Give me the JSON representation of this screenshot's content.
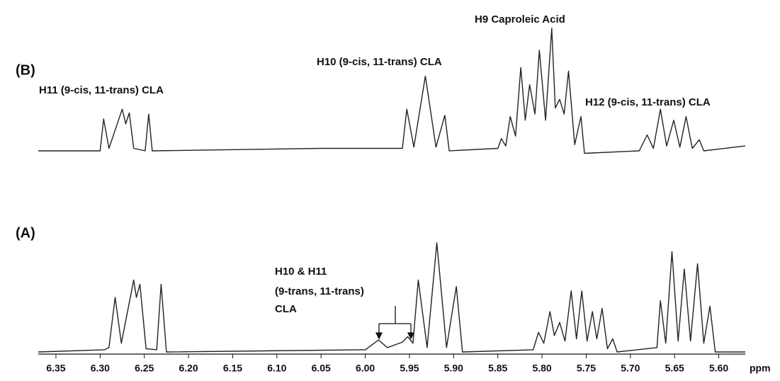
{
  "chart_data": [
    {
      "type": "line",
      "panel_label": "(B)",
      "color": "#222",
      "xlim": [
        6.37,
        5.57
      ],
      "ylim": [
        0,
        100
      ],
      "annotations": [
        "H11 (9-cis, 11-trans) CLA",
        "H10 (9-cis, 11-trans) CLA",
        "H9 Caproleic Acid",
        "H12 (9-cis, 11-trans) CLA"
      ],
      "x": [
        6.37,
        6.3,
        6.296,
        6.29,
        6.275,
        6.271,
        6.267,
        6.262,
        6.249,
        6.245,
        6.241,
        6.05,
        5.958,
        5.953,
        5.945,
        5.932,
        5.92,
        5.91,
        5.905,
        5.85,
        5.846,
        5.841,
        5.836,
        5.83,
        5.824,
        5.819,
        5.814,
        5.808,
        5.803,
        5.796,
        5.789,
        5.785,
        5.78,
        5.775,
        5.77,
        5.763,
        5.756,
        5.752,
        5.69,
        5.681,
        5.674,
        5.666,
        5.659,
        5.651,
        5.644,
        5.637,
        5.63,
        5.622,
        5.617,
        5.57
      ],
      "values": [
        0,
        0,
        26,
        2,
        34,
        22,
        31,
        2,
        0,
        30,
        0,
        2,
        2,
        34,
        3,
        61,
        3,
        29,
        0,
        2,
        10,
        4,
        28,
        12,
        68,
        25,
        54,
        30,
        82,
        25,
        100,
        35,
        42,
        30,
        65,
        5,
        28,
        -2,
        0,
        13,
        2,
        34,
        4,
        25,
        3,
        28,
        2,
        9,
        0,
        4
      ]
    },
    {
      "type": "line",
      "panel_label": "(A)",
      "color": "#222",
      "xlim": [
        6.37,
        5.57
      ],
      "ylim": [
        0,
        100
      ],
      "xlabel": "ppm",
      "xticks": [
        6.35,
        {
          "value": 6.3,
          "label": "6.30"
        },
        6.25,
        {
          "value": 6.2,
          "label": "6.20"
        },
        6.15,
        {
          "value": 6.1,
          "label": "6.10"
        },
        6.05,
        {
          "value": 6.0,
          "label": "6.00"
        },
        5.95,
        {
          "value": 5.9,
          "label": "5.90"
        },
        5.85,
        {
          "value": 5.8,
          "label": "5.80"
        },
        5.75,
        {
          "value": 5.7,
          "label": "5.70"
        },
        5.65,
        {
          "value": 5.6,
          "label": "5.60"
        }
      ],
      "annotations": [
        "H10 & H11",
        "(9-trans, 11-trans)",
        "CLA"
      ],
      "x": [
        6.37,
        6.295,
        6.29,
        6.283,
        6.276,
        6.262,
        6.259,
        6.255,
        6.248,
        6.236,
        6.231,
        6.225,
        6.0,
        5.985,
        5.975,
        5.958,
        5.952,
        5.946,
        5.94,
        5.93,
        5.919,
        5.908,
        5.897,
        5.89,
        5.81,
        5.804,
        5.798,
        5.791,
        5.786,
        5.78,
        5.774,
        5.767,
        5.761,
        5.755,
        5.749,
        5.743,
        5.738,
        5.732,
        5.726,
        5.72,
        5.715,
        5.67,
        5.666,
        5.66,
        5.653,
        5.646,
        5.639,
        5.632,
        5.624,
        5.617,
        5.61,
        5.604,
        5.57
      ],
      "values": [
        0,
        2,
        4,
        50,
        8,
        66,
        50,
        62,
        3,
        2,
        62,
        0,
        2,
        11,
        4,
        9,
        14,
        8,
        66,
        4,
        100,
        4,
        60,
        0,
        2,
        18,
        8,
        37,
        15,
        27,
        10,
        56,
        12,
        56,
        10,
        37,
        12,
        40,
        3,
        12,
        0,
        4,
        47,
        8,
        92,
        10,
        76,
        10,
        81,
        8,
        42,
        0,
        0
      ]
    }
  ]
}
